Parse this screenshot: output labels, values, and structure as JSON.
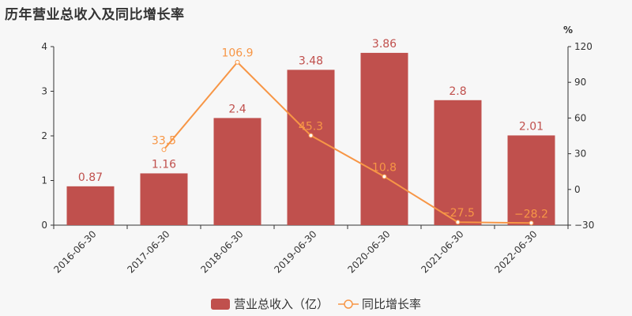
{
  "title": "历年营业总收入及同比增长率",
  "colors": {
    "bar": "#c0504d",
    "line": "#f79646",
    "axis": "#333333",
    "text": "#333333",
    "background": "#f7f7f7"
  },
  "legend": {
    "bar_label": "营业总收入（亿）",
    "line_label": "同比增长率"
  },
  "chart_data": {
    "type": "bar+line",
    "title": "历年营业总收入及同比增长率",
    "categories": [
      "2016-06-30",
      "2017-06-30",
      "2018-06-30",
      "2019-06-30",
      "2020-06-30",
      "2021-06-30",
      "2022-06-30"
    ],
    "series": [
      {
        "name": "营业总收入（亿）",
        "type": "bar",
        "axis": "left",
        "values": [
          0.87,
          1.16,
          2.4,
          3.48,
          3.86,
          2.8,
          2.01
        ],
        "labels": [
          "0.87",
          "1.16",
          "2.4",
          "3.48",
          "3.86",
          "2.8",
          "2.01"
        ]
      },
      {
        "name": "同比增长率",
        "type": "line",
        "axis": "right",
        "values": [
          null,
          33.5,
          106.9,
          45.3,
          10.8,
          -27.5,
          -28.2
        ],
        "labels": [
          "",
          "33.5",
          "106.9",
          "45.3",
          "10.8",
          "−27.5",
          "−28.2"
        ]
      }
    ],
    "left_axis": {
      "min": 0,
      "max": 4,
      "ticks": [
        "0",
        "1",
        "2",
        "3",
        "4"
      ]
    },
    "right_axis": {
      "min": -30,
      "max": 120,
      "unit": "%",
      "ticks": [
        "−30",
        "0",
        "30",
        "60",
        "90",
        "120"
      ]
    },
    "xlabel": "",
    "ylabel": "",
    "grid": false,
    "legend_position": "bottom"
  }
}
